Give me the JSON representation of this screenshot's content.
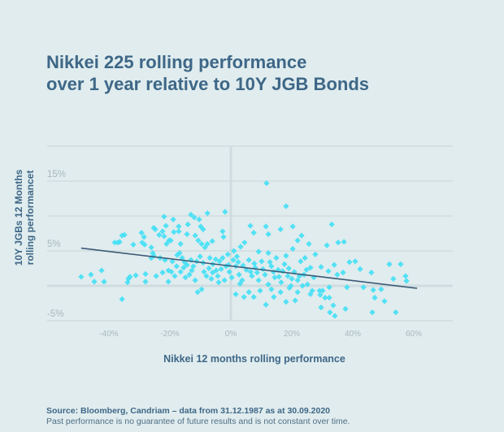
{
  "title": {
    "line1": "Nikkei 225 rolling performance",
    "line2": "over 1 year relative to 10Y JGB Bonds"
  },
  "footer": {
    "source": "Source: Bloomberg, Candriam – data from 31.12.1987 as at 30.09.2020",
    "disclaimer": "Past performance is no guarantee of future results and is not constant over time."
  },
  "colors": {
    "background": "#e0ecee",
    "points": "#45e0f5",
    "trendline": "#3b5a75",
    "title": "#3e6787",
    "grid": "#ccd9dc",
    "tick_text": "#a9b8be"
  },
  "chart_data": {
    "type": "scatter",
    "title": "Nikkei 225 rolling performance over 1 year relative to 10Y JGB Bonds",
    "xlabel": "Nikkei 12 months rolling performance",
    "ylabel_lines": [
      "10Y JGBs 12 Months",
      "rolling performancet"
    ],
    "xlim": [
      -60,
      73
    ],
    "ylim": [
      -5,
      20
    ],
    "grid": true,
    "x_ticks": [
      -40,
      -20,
      0,
      20,
      40,
      60
    ],
    "x_tick_labels": [
      "-40%",
      "-20%",
      "0%",
      "20%",
      "40%",
      "60%"
    ],
    "y_gridlines": [
      20,
      15,
      10,
      5,
      0,
      -5
    ],
    "y_tick_labels": [
      {
        "value": 15,
        "label": "15%"
      },
      {
        "value": 5,
        "label": "5%"
      },
      {
        "value": -5,
        "label": "-5%"
      }
    ],
    "trendline": {
      "x": [
        -49.1,
        61.1
      ],
      "y": [
        5.4,
        -0.35
      ]
    },
    "points": [
      [
        -49.1,
        1.3
      ],
      [
        -45.9,
        1.6
      ],
      [
        -44.8,
        0.6
      ],
      [
        -42.4,
        2.2
      ],
      [
        -41.6,
        0.6
      ],
      [
        -37.1,
        6.2
      ],
      [
        -36.5,
        6.3
      ],
      [
        -35.7,
        7.2
      ],
      [
        -34.9,
        7.3
      ],
      [
        -33.9,
        0.5
      ],
      [
        -33.1,
        1.3
      ],
      [
        -31.2,
        1.5
      ],
      [
        -35.7,
        -1.9
      ],
      [
        -32.0,
        5.9
      ],
      [
        -29.1,
        6.2
      ],
      [
        -38.1,
        6.2
      ],
      [
        -29.3,
        7.6
      ],
      [
        -28.5,
        7.0
      ],
      [
        -28.3,
        5.9
      ],
      [
        -26.1,
        5.5
      ],
      [
        -24.8,
        8.1
      ],
      [
        -23.5,
        7.3
      ],
      [
        -22.4,
        7.8
      ],
      [
        -21.9,
        7.1
      ],
      [
        -25.6,
        4.7
      ],
      [
        -25.3,
        4.3
      ],
      [
        -26.1,
        4.0
      ],
      [
        -23.2,
        4.0
      ],
      [
        -21.6,
        3.7
      ],
      [
        -33.6,
        1.0
      ],
      [
        -28.0,
        1.7
      ],
      [
        -28.0,
        0.6
      ],
      [
        -24.5,
        1.4
      ],
      [
        -22.4,
        1.9
      ],
      [
        -20.5,
        2.2
      ],
      [
        -20.5,
        0.6
      ],
      [
        11.7,
        14.7
      ],
      [
        18.1,
        11.4
      ],
      [
        -21.9,
        9.9
      ],
      [
        -13.1,
        10.2
      ],
      [
        -12.0,
        9.8
      ],
      [
        -7.7,
        10.4
      ],
      [
        -1.9,
        10.6
      ],
      [
        -25.3,
        8.3
      ],
      [
        -17.1,
        8.5
      ],
      [
        -9.9,
        8.5
      ],
      [
        -9.1,
        8.1
      ],
      [
        -2.7,
        7.8
      ],
      [
        11.5,
        8.5
      ],
      [
        16.3,
        8.1
      ],
      [
        12.3,
        7.4
      ],
      [
        6.4,
        8.6
      ],
      [
        20.3,
        8.5
      ],
      [
        23.2,
        7.2
      ],
      [
        33.1,
        8.8
      ],
      [
        31.5,
        5.8
      ],
      [
        35.2,
        6.2
      ],
      [
        37.1,
        6.3
      ],
      [
        7.5,
        7.6
      ],
      [
        3.2,
        5.6
      ],
      [
        -20.3,
        6.5
      ],
      [
        -16.5,
        6.0
      ],
      [
        -18.7,
        7.7
      ],
      [
        29.6,
        2.7
      ],
      [
        32.0,
        2.1
      ],
      [
        33.9,
        3.0
      ],
      [
        34.9,
        1.6
      ],
      [
        36.8,
        1.9
      ],
      [
        38.9,
        3.4
      ],
      [
        40.8,
        3.5
      ],
      [
        42.4,
        2.4
      ],
      [
        46.1,
        1.9
      ],
      [
        52.0,
        3.1
      ],
      [
        29.1,
        -0.7
      ],
      [
        30.1,
        -0.7
      ],
      [
        29.3,
        -1.3
      ],
      [
        30.9,
        -1.7
      ],
      [
        32.3,
        -1.7
      ],
      [
        32.3,
        -0.2
      ],
      [
        38.1,
        -0.2
      ],
      [
        43.5,
        -0.2
      ],
      [
        49.3,
        -0.5
      ],
      [
        46.7,
        -0.6
      ],
      [
        29.6,
        -3.1
      ],
      [
        33.6,
        -2.8
      ],
      [
        32.5,
        -3.8
      ],
      [
        34.1,
        -4.3
      ],
      [
        37.6,
        -3.3
      ],
      [
        47.2,
        -1.7
      ],
      [
        50.4,
        -2.2
      ],
      [
        46.4,
        -3.8
      ],
      [
        54.1,
        -3.8
      ],
      [
        55.7,
        3.1
      ],
      [
        57.3,
        1.4
      ],
      [
        57.6,
        0.7
      ],
      [
        53.3,
        1.0
      ],
      [
        -21.1,
        6.0
      ],
      [
        -19.7,
        6.5
      ],
      [
        -19.2,
        3.5
      ],
      [
        -17.6,
        4.4
      ],
      [
        -16.8,
        4.7
      ],
      [
        -16.0,
        4.0
      ],
      [
        -15.5,
        2.6
      ],
      [
        -14.4,
        3.0
      ],
      [
        -13.1,
        3.7
      ],
      [
        -12.3,
        2.8
      ],
      [
        -11.2,
        3.5
      ],
      [
        -10.1,
        4.2
      ],
      [
        -9.1,
        3.3
      ],
      [
        -8.5,
        5.5
      ],
      [
        -7.7,
        6.0
      ],
      [
        -6.9,
        4.0
      ],
      [
        -5.9,
        3.1
      ],
      [
        -4.8,
        2.2
      ],
      [
        -3.7,
        3.5
      ],
      [
        -2.7,
        4.0
      ],
      [
        -1.6,
        2.8
      ],
      [
        -0.5,
        2.0
      ],
      [
        -10.9,
        -0.9
      ],
      [
        -9.6,
        -0.5
      ],
      [
        -14.9,
        1.2
      ],
      [
        -13.6,
        1.6
      ],
      [
        -11.7,
        0.8
      ],
      [
        -8.0,
        1.4
      ],
      [
        -6.4,
        1.0
      ],
      [
        -4.3,
        1.4
      ],
      [
        -2.1,
        0.8
      ],
      [
        -16.5,
        2.0
      ],
      [
        -18.4,
        1.4
      ],
      [
        -10.7,
        6.5
      ],
      [
        -9.6,
        6.0
      ],
      [
        -6.1,
        6.4
      ],
      [
        -2.4,
        7.0
      ],
      [
        4.5,
        6.2
      ],
      [
        20.3,
        5.3
      ],
      [
        0.8,
        3.7
      ],
      [
        1.6,
        2.8
      ],
      [
        2.7,
        1.6
      ],
      [
        3.7,
        0.8
      ],
      [
        5.1,
        2.3
      ],
      [
        5.9,
        3.7
      ],
      [
        6.9,
        1.4
      ],
      [
        8.0,
        2.6
      ],
      [
        9.1,
        0.8
      ],
      [
        10.1,
        3.5
      ],
      [
        11.2,
        1.6
      ],
      [
        12.3,
        0.2
      ],
      [
        13.3,
        2.8
      ],
      [
        14.4,
        1.2
      ],
      [
        15.5,
        2.3
      ],
      [
        16.5,
        0.5
      ],
      [
        17.6,
        3.1
      ],
      [
        18.7,
        1.4
      ],
      [
        19.7,
        0.0
      ],
      [
        20.8,
        2.0
      ],
      [
        21.9,
        0.8
      ],
      [
        22.9,
        3.5
      ],
      [
        24.0,
        1.6
      ],
      [
        25.1,
        0.2
      ],
      [
        26.1,
        2.6
      ],
      [
        27.2,
        1.2
      ],
      [
        1.6,
        -1.2
      ],
      [
        4.3,
        -1.6
      ],
      [
        5.9,
        -0.9
      ],
      [
        7.5,
        -1.6
      ],
      [
        9.6,
        -0.7
      ],
      [
        13.3,
        -0.5
      ],
      [
        16.3,
        -0.9
      ],
      [
        19.2,
        -0.3
      ],
      [
        21.9,
        -0.9
      ],
      [
        23.5,
        0.0
      ],
      [
        26.1,
        -1.2
      ],
      [
        26.7,
        -0.7
      ],
      [
        11.5,
        -2.7
      ],
      [
        18.1,
        -2.3
      ],
      [
        21.1,
        -2.1
      ],
      [
        14.1,
        -1.6
      ],
      [
        9.1,
        4.9
      ],
      [
        12.3,
        4.7
      ],
      [
        14.9,
        4.0
      ],
      [
        18.1,
        4.3
      ],
      [
        24.3,
        4.0
      ],
      [
        27.7,
        4.5
      ],
      [
        25.6,
        6.0
      ],
      [
        21.9,
        6.5
      ],
      [
        -21.3,
        8.6
      ],
      [
        -18.9,
        9.5
      ],
      [
        -14.1,
        8.8
      ],
      [
        -10.4,
        9.5
      ],
      [
        -14.4,
        7.4
      ],
      [
        -11.7,
        7.2
      ],
      [
        -17.1,
        7.8
      ],
      [
        -1.0,
        4.5
      ],
      [
        1.0,
        5.0
      ],
      [
        2.0,
        4.2
      ],
      [
        0.3,
        1.2
      ],
      [
        -0.8,
        3.0
      ],
      [
        2.4,
        3.4
      ],
      [
        4.0,
        2.9
      ],
      [
        6.5,
        2.0
      ],
      [
        7.7,
        3.2
      ],
      [
        8.6,
        1.9
      ],
      [
        10.5,
        2.4
      ],
      [
        12.8,
        3.4
      ],
      [
        14.0,
        2.0
      ],
      [
        15.8,
        1.3
      ],
      [
        17.0,
        2.1
      ],
      [
        19.0,
        2.5
      ],
      [
        20.0,
        1.0
      ],
      [
        22.5,
        1.4
      ],
      [
        24.8,
        2.3
      ],
      [
        -3.2,
        2.4
      ],
      [
        -5.0,
        3.8
      ],
      [
        -7.2,
        2.5
      ],
      [
        -8.8,
        2.0
      ],
      [
        -12.8,
        2.2
      ],
      [
        -15.2,
        3.4
      ],
      [
        -17.8,
        2.8
      ],
      [
        -19.5,
        2.0
      ],
      [
        -6.0,
        1.9
      ],
      [
        -4.0,
        0.5
      ],
      [
        3.0,
        0.3
      ]
    ]
  }
}
